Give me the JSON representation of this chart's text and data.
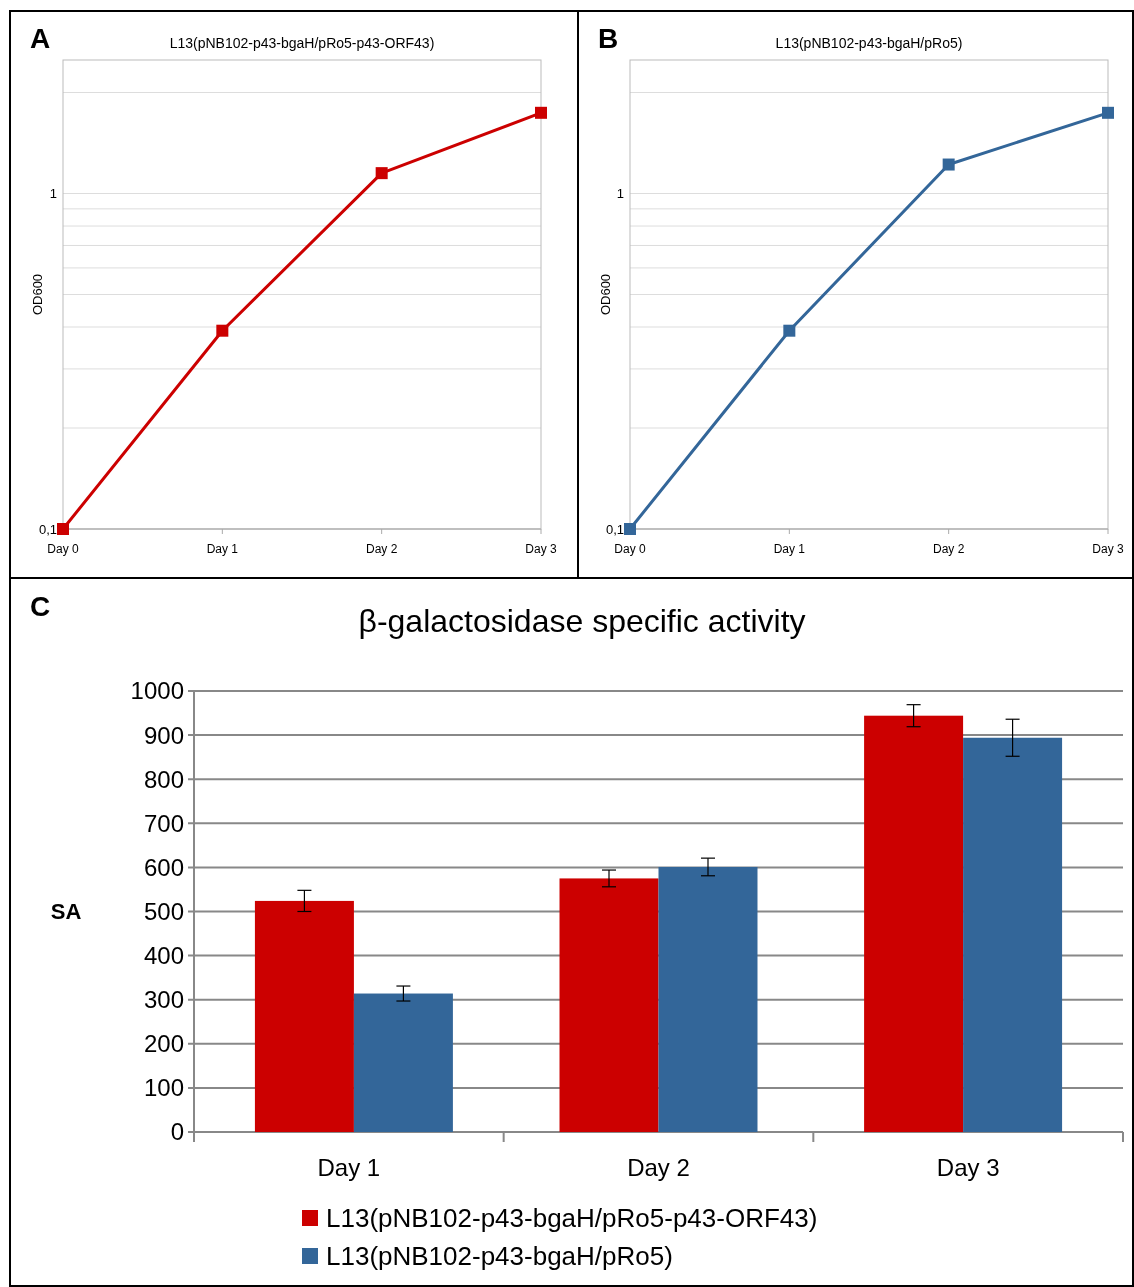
{
  "chart_data": [
    {
      "type": "line",
      "title": "L13(pNB102-p43-bgaH/pRo5-p43-ORF43)",
      "ylabel": "OD600",
      "annotations": [
        "A"
      ],
      "categories": [
        "Day 0",
        "Day 1",
        "Day 2",
        "Day 3"
      ],
      "log": true,
      "ylim": [
        0.1,
        2.5
      ],
      "yticks": [
        {
          "value": 0.1,
          "label": "0,1"
        },
        {
          "value": 0.2,
          "label": null
        },
        {
          "value": 0.3,
          "label": null
        },
        {
          "value": 0.4,
          "label": null
        },
        {
          "value": 0.5,
          "label": null
        },
        {
          "value": 0.6,
          "label": null
        },
        {
          "value": 0.7,
          "label": null
        },
        {
          "value": 0.8,
          "label": null
        },
        {
          "value": 0.9,
          "label": null
        },
        1,
        {
          "value": 2,
          "label": null
        }
      ],
      "grid": "y",
      "marker": "square",
      "series": [
        {
          "color": "#cc0000",
          "values": [
            0.1,
            0.39,
            1.15,
            1.74
          ]
        }
      ]
    },
    {
      "type": "line",
      "title": "L13(pNB102-p43-bgaH/pRo5)",
      "ylabel": "OD600",
      "annotations": [
        "B"
      ],
      "categories": [
        "Day 0",
        "Day 1",
        "Day 2",
        "Day 3"
      ],
      "log": true,
      "ylim": [
        0.1,
        2.5
      ],
      "yticks": [
        {
          "value": 0.1,
          "label": "0,1"
        },
        {
          "value": 0.2,
          "label": null
        },
        {
          "value": 0.3,
          "label": null
        },
        {
          "value": 0.4,
          "label": null
        },
        {
          "value": 0.5,
          "label": null
        },
        {
          "value": 0.6,
          "label": null
        },
        {
          "value": 0.7,
          "label": null
        },
        {
          "value": 0.8,
          "label": null
        },
        {
          "value": 0.9,
          "label": null
        },
        1,
        {
          "value": 2,
          "label": null
        }
      ],
      "grid": "y",
      "marker": "square",
      "series": [
        {
          "color": "#336699",
          "values": [
            0.1,
            0.39,
            1.22,
            1.74
          ]
        }
      ]
    },
    {
      "type": "bar",
      "title": "β-galactosidase specific activity",
      "ylabel": "SA",
      "annotations": [
        "C"
      ],
      "categories": [
        "Day 1",
        "Day 2",
        "Day 3"
      ],
      "ylim": [
        0,
        1000
      ],
      "yticks": [
        0,
        100,
        200,
        300,
        400,
        500,
        600,
        700,
        800,
        900,
        1000
      ],
      "grid": "y",
      "legend": "bottom",
      "series": [
        {
          "name": "L13(pNB102-p43-bgaH/pRo5-p43-ORF43)",
          "color": "#cc0000",
          "values": [
            524,
            575,
            944
          ],
          "errors": [
            24,
            19,
            25
          ]
        },
        {
          "name": "L13(pNB102-p43-bgaH/pRo5)",
          "color": "#336699",
          "values": [
            314,
            601,
            894
          ],
          "errors": [
            17,
            20,
            42
          ]
        }
      ]
    }
  ]
}
